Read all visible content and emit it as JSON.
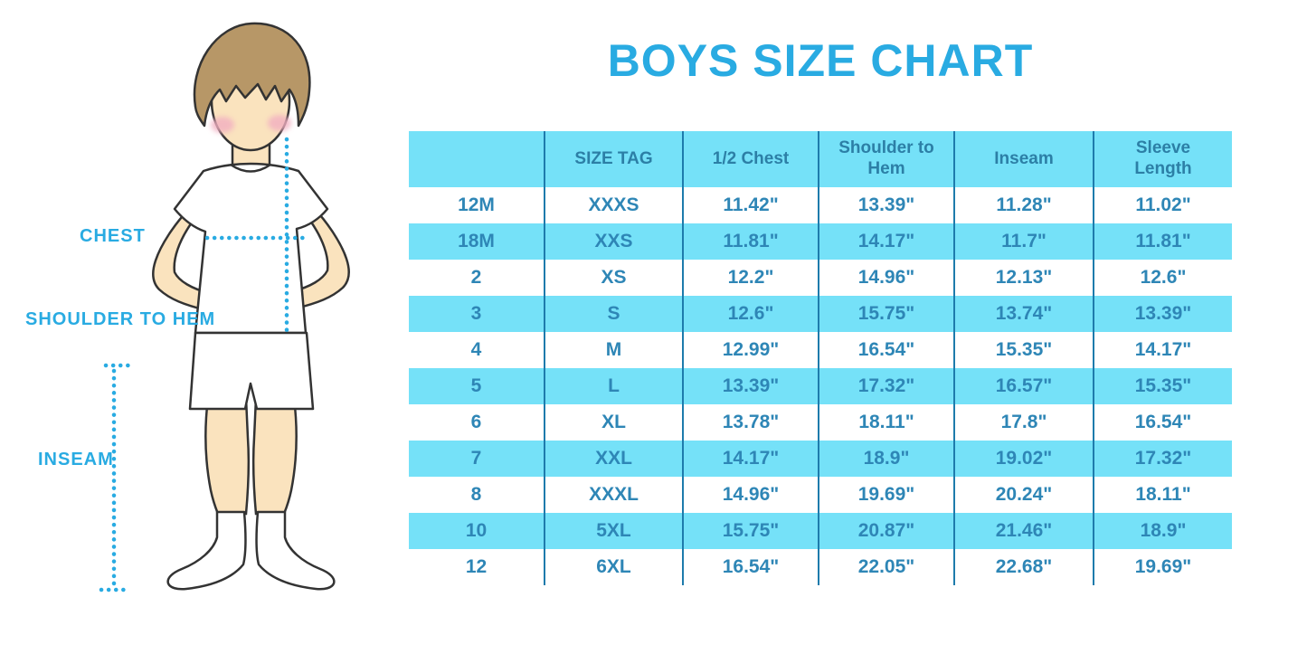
{
  "page": {
    "title": "BOYS SIZE CHART"
  },
  "figure": {
    "labels": {
      "chest": "CHEST",
      "shoulder_to_hem": "SHOULDER TO HEM",
      "inseam": "INSEAM"
    }
  },
  "colors": {
    "title_blue": "#29ABE2",
    "label_blue": "#29ABE2",
    "row_cyan": "#75E1F8",
    "divider_blue": "#1E7BAC",
    "header_text": "#2C7FA6",
    "cell_text": "#2E86B6",
    "skin": "#FAE3BE",
    "hair": "#B79767",
    "blush": "#F2AFC1"
  },
  "chart_data": {
    "type": "table",
    "title": "BOYS SIZE CHART",
    "columns": [
      "",
      "SIZE TAG",
      "1/2 Chest",
      "Shoulder to Hem",
      "Inseam",
      "Sleeve Length"
    ],
    "rows": [
      [
        "12M",
        "XXXS",
        "11.42\"",
        "13.39\"",
        "11.28\"",
        "11.02\""
      ],
      [
        "18M",
        "XXS",
        "11.81\"",
        "14.17\"",
        "11.7\"",
        "11.81\""
      ],
      [
        "2",
        "XS",
        "12.2\"",
        "14.96\"",
        "12.13\"",
        "12.6\""
      ],
      [
        "3",
        "S",
        "12.6\"",
        "15.75\"",
        "13.74\"",
        "13.39\""
      ],
      [
        "4",
        "M",
        "12.99\"",
        "16.54\"",
        "15.35\"",
        "14.17\""
      ],
      [
        "5",
        "L",
        "13.39\"",
        "17.32\"",
        "16.57\"",
        "15.35\""
      ],
      [
        "6",
        "XL",
        "13.78\"",
        "18.11\"",
        "17.8\"",
        "16.54\""
      ],
      [
        "7",
        "XXL",
        "14.17\"",
        "18.9\"",
        "19.02\"",
        "17.32\""
      ],
      [
        "8",
        "XXXL",
        "14.96\"",
        "19.69\"",
        "20.24\"",
        "18.11\""
      ],
      [
        "10",
        "5XL",
        "15.75\"",
        "20.87\"",
        "21.46\"",
        "18.9\""
      ],
      [
        "12",
        "6XL",
        "16.54\"",
        "22.05\"",
        "22.68\"",
        "19.69\""
      ]
    ]
  }
}
